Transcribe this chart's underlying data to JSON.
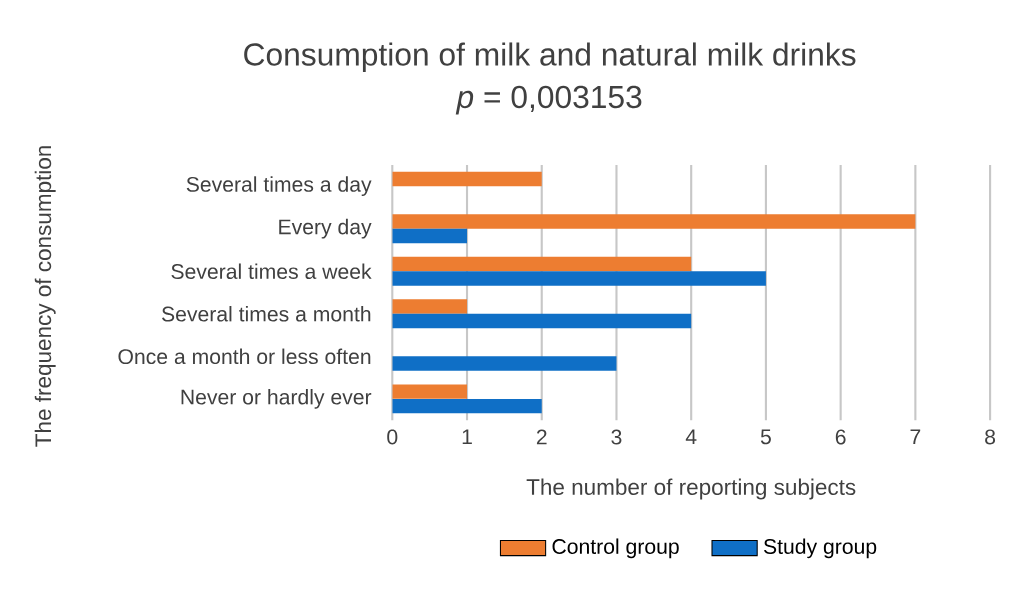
{
  "chart_data": {
    "type": "bar",
    "orientation": "horizontal",
    "title": "Consumption of milk and natural milk drinks",
    "subtitle": "*p* = 0,003153",
    "xlabel": "The number of reporting subjects",
    "ylabel": "The frequency of consumption",
    "categories": [
      "Several times a day",
      "Every day",
      "Several times a week",
      "Several times a month",
      "Once a month or less often",
      "Never or hardly ever"
    ],
    "series": [
      {
        "name": "Control group",
        "color": "#ed7d31",
        "values": [
          2,
          7,
          4,
          1,
          0,
          1
        ]
      },
      {
        "name": "Study group",
        "color": "#0f6fc6",
        "values": [
          0,
          1,
          5,
          4,
          3,
          2
        ]
      }
    ],
    "xlim": [
      0,
      8
    ],
    "xticks": [
      0,
      1,
      2,
      3,
      4,
      5,
      6,
      7,
      8
    ],
    "grid": "x",
    "legend": "bottom"
  }
}
